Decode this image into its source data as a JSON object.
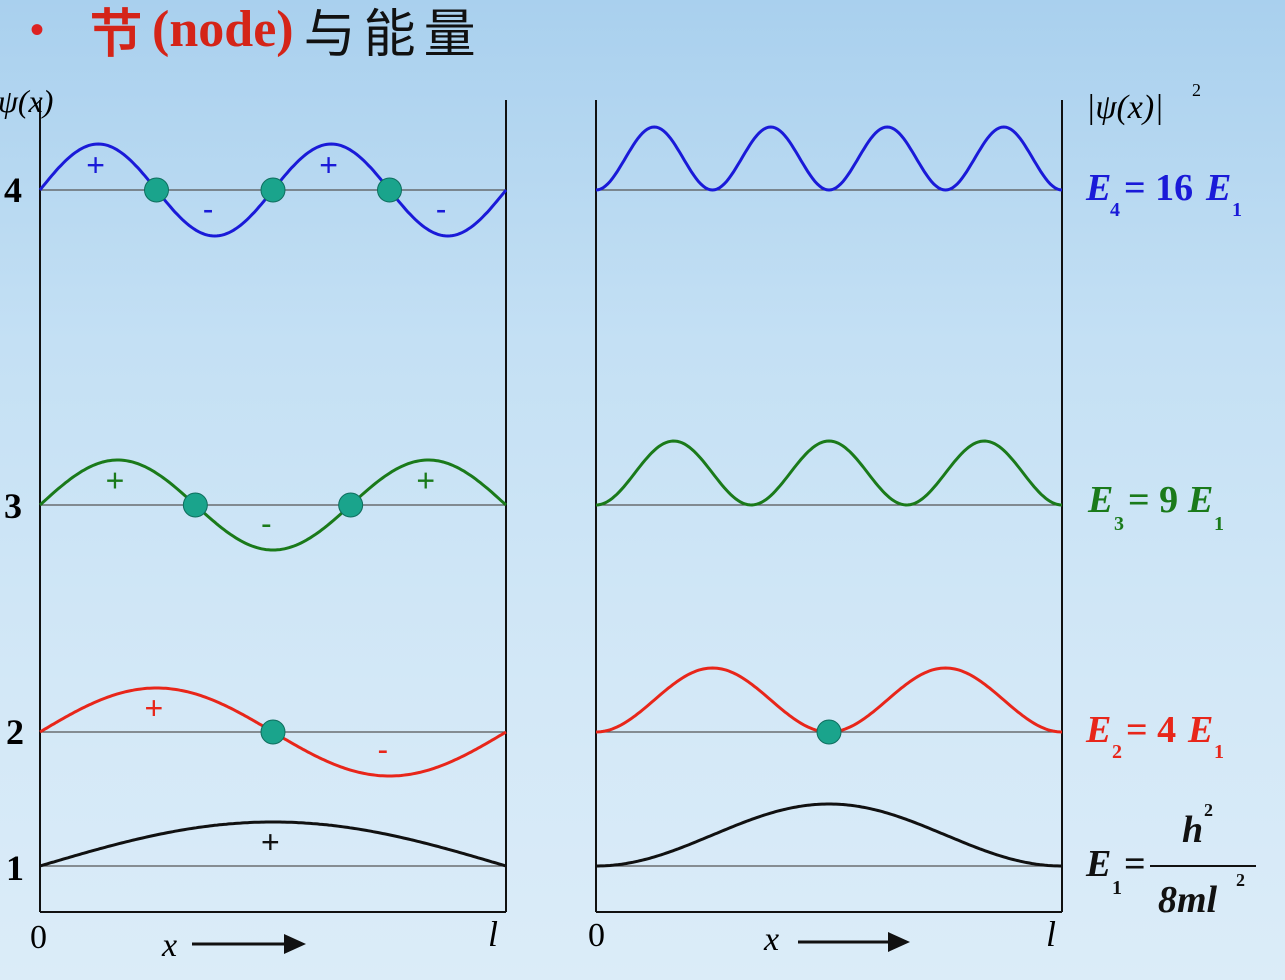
{
  "title": {
    "bullet": "•",
    "prefix": "节",
    "node": "(node)",
    "suffix": "与能量"
  },
  "left_axis_label": "ψ(x)",
  "right_axis_label": "|ψ(x)|",
  "right_axis_exp": "2",
  "n_labels": [
    "1",
    "2",
    "3",
    "4"
  ],
  "x_axis": {
    "origin": "0",
    "end": "l",
    "var": "x"
  },
  "energies": [
    {
      "n": 4,
      "sub": "4",
      "rhs": "= 16",
      "sub1": "1",
      "color": "#1a1ad8"
    },
    {
      "n": 3,
      "sub": "3",
      "rhs": "= 9",
      "sub1": "1",
      "color": "#1a7a1a"
    },
    {
      "n": 2,
      "sub": "2",
      "rhs": "= 4",
      "sub1": "1",
      "color": "#e8261a"
    },
    {
      "n": 1,
      "sub": "1",
      "num": "h",
      "num_exp": "2",
      "den": "8ml",
      "den_exp": "2",
      "color": "#111111"
    }
  ],
  "signs": {
    "n4": [
      "+",
      "-",
      "+",
      "-"
    ],
    "n3": [
      "+",
      "-",
      "+"
    ],
    "n2": [
      "+",
      "-"
    ],
    "n1": [
      "+"
    ]
  },
  "colors": {
    "n1": "#111111",
    "n2": "#e8261a",
    "n3": "#1a7a1a",
    "n4": "#1a1ad8",
    "node": "#1aa48c"
  }
}
